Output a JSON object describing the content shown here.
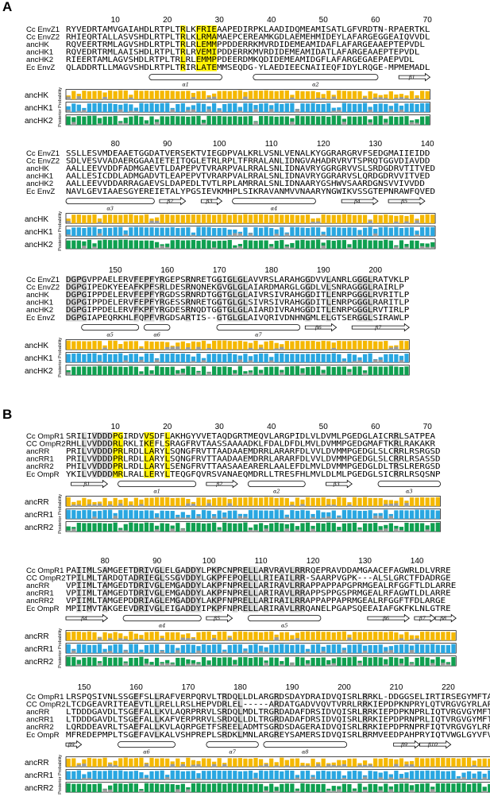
{
  "panels": [
    {
      "letter": "A",
      "blocks": [
        {
          "start": 1,
          "ticks": [
            10,
            20,
            30,
            40,
            50,
            60,
            70
          ],
          "seqs": [
            {
              "name": "Cc EnvZ1",
              "seq": "RYVEDRTAMVGAIAHDLRTPLTRLKFRIEAAPEDIRPKLAADIDQMEAMISATLGFVRDTN-RPAERTKL"
            },
            {
              "name": "Cc EnvZ2",
              "seq": "RHIEQRTALLASVSHDLRTPLTRLKLRMAMAEPCEREAMKGDLAEMEHMIDEYLAFARGEGGEAIQVVDL"
            },
            {
              "name": "ancHK",
              "seq": "RQVEERTRMLAGVSHDLRTPLTRLRLEMMPPDDERRKMVRDIDEMEAMIDAFLAFARGEAAEPTEPVDL"
            },
            {
              "name": "ancHK1",
              "seq": "RQVEDRTRMLAAISHDLRTPLTRLRVEMIPDDERRKMVRDIDEMEAMIDATLAFARGEAAEPTEPVDL"
            },
            {
              "name": "ancHK2",
              "seq": "RIEERTAMLAGVSHDLRTPLTRLRLEMMPPDEERDMKQDIDEMEAMIDGFLAFARGEGAEPAEPVDL"
            },
            {
              "name": "Ec EnvZ",
              "seq": "QLADDRTLLMAGVSHDLRTPLTRIRLATEMMSEQDG-YLAEDIEECNAIIEQFIDYLRQGE-MPMEMADL"
            }
          ],
          "ss": [
            {
              "label": "α1",
              "type": "helix",
              "from": 17,
              "to": 30
            },
            {
              "label": "α2",
              "type": "helix",
              "from": 37,
              "to": 60
            },
            {
              "label": "β1",
              "type": "strand",
              "from": 65,
              "to": 70
            }
          ],
          "pp_rows": [
            {
              "name": "ancHK",
              "color": "#F5B800"
            },
            {
              "name": "ancHK1",
              "color": "#29A7E1"
            },
            {
              "name": "ancHK2",
              "color": "#0FA050"
            }
          ]
        },
        {
          "start": 71,
          "ticks": [
            80,
            90,
            100,
            110,
            120,
            130,
            140
          ],
          "seqs": [
            {
              "name": "Cc EnvZ1",
              "seq": "SSLLESVMDEAAETGGDATVERSEKTVIEGDPVALKRLVSNLVENALKYGGRARGRVFSEDGMAIIEIDD"
            },
            {
              "name": "Cc EnvZ2",
              "seq": "SDLVESVVADAERGGAAIETEITQGLETRLRPLTFRRALANLIDNGVAHADRVRVTSPRQTGGVDIAVDD"
            },
            {
              "name": "ancHK",
              "seq": "AALLEEVVDDFADMGAEVTLDAPEPVTVRARPVALRRALSNLIDNAVRYGGRGRVVSLSRDGDRVTITVED"
            },
            {
              "name": "ancHK1",
              "seq": "AALLESICDDLADMGADVTLEAPEPVTVRARPVALRRALSNLIDNAVRYGGRARVSLQRDGDRVVITVED"
            },
            {
              "name": "ancHK2",
              "seq": "AALLEEVVDDARRAGAEVSLDAPEDLTVTLRPLAMRRALSNLIDNAARYGSHWVSAARDGNSVVIVVDD"
            },
            {
              "name": "Ec EnvZ",
              "seq": "NAVLGEVIAAESGYEREIETALYPGSIEVKMHPLSIKRAVANMVVNAARYNGWIKVSSGTEPNRAWFQVED"
            }
          ],
          "ss": [
            {
              "label": "α3",
              "type": "helix",
              "from": 71,
              "to": 87
            },
            {
              "label": "β2",
              "type": "strand",
              "from": 89,
              "to": 93
            },
            {
              "label": "β3",
              "type": "strand",
              "from": 97,
              "to": 100
            },
            {
              "label": "α4",
              "type": "helix",
              "from": 103,
              "to": 118
            },
            {
              "label": "β4",
              "type": "strand",
              "from": 124,
              "to": 130
            },
            {
              "label": "β5",
              "type": "strand",
              "from": 133,
              "to": 139
            }
          ],
          "pp_rows": [
            {
              "name": "ancHK",
              "color": "#F5B800"
            },
            {
              "name": "ancHK1",
              "color": "#29A7E1"
            },
            {
              "name": "ancHK2",
              "color": "#0FA050"
            }
          ]
        },
        {
          "start": 141,
          "ticks": [
            150,
            160,
            170,
            180,
            190,
            200
          ],
          "seqs": [
            {
              "name": "Cc EnvZ1",
              "seq": "DGPGVPPAELERVFEPFYRGEPSRNRETGGIGLGLAVVRSLARAHGGDVVLANRLGGGLRATVKLP"
            },
            {
              "name": "Cc EnvZ2",
              "seq": "DGPGIPEDKYEEAFKPFSRLDESRNQNEKGVGLGLAIARDMARGLGGDLVLSNRAGGGLRAIRLP"
            },
            {
              "name": "ancHK",
              "seq": "DGPGIPPDELERVFEPFYRGDSSRNRDTGGTGLGLAIVRSIVRAHGGDITLENRPGGGLRVRITLP"
            },
            {
              "name": "ancHK1",
              "seq": "DGPGIPPDELERVFEPFYRGESSRNRETGGTGLGLSIVRSIVRAHGGDITLENRPGGGLRARITLP"
            },
            {
              "name": "ancHK2",
              "seq": "DGPGIPPDELERVFKPFYRGDESRNQDTGGTGLGLAIARDIVRAHGGDITLENRPGGGLRVTIRLP"
            },
            {
              "name": "Ec EnvZ",
              "seq": "DGPGIAPEQRKHLFQPFVRGDSARTIS--GTGLGLAIVQRIVDNHNGMLELGTSERGGLSIRAWLP"
            }
          ],
          "ss": [
            {
              "label": "α5",
              "type": "helix",
              "from": 144,
              "to": 154
            },
            {
              "label": "α6",
              "type": "helix",
              "from": 156,
              "to": 160
            },
            {
              "label": "α7",
              "type": "helix",
              "from": 170,
              "to": 185
            },
            {
              "label": "β6",
              "type": "strand",
              "from": 187,
              "to": 192
            },
            {
              "label": "β7",
              "type": "strand",
              "from": 196,
              "to": 206
            }
          ],
          "pp_rows": [
            {
              "name": "ancHK",
              "color": "#F5B800"
            },
            {
              "name": "ancHK1",
              "color": "#29A7E1"
            },
            {
              "name": "ancHK2",
              "color": "#0FA050"
            }
          ]
        }
      ]
    },
    {
      "letter": "B",
      "blocks": [
        {
          "start": 1,
          "ticks": [
            10,
            20,
            30,
            40,
            50,
            60,
            70
          ],
          "seqs": [
            {
              "name": "Cc OmpR1",
              "seq": "SRILIVDDDPGIRDVVSDFLAKHGYVVETAQDGRTMEQVLARGPIDLVLDVMLPGEDGLAICRRLSATPEA"
            },
            {
              "name": "CC OmpR2",
              "seq": "RHLLVVDDDRLRKLIKEFLSRAGFRVTAASSAAAADKLFDALDFDLMVLDVMMPGEDGMAFTKRLRAKAKR"
            },
            {
              "name": "ancRR",
              "seq": "PRILVVDDDPRLRDLLARYLSQNGFRVTTAADAAEMDRRLARARFDLVVLDVMMPGEDGLSLCRRLRSRGSD"
            },
            {
              "name": "ancRR1",
              "seq": "PRILVVDDDPRLRDLLARYLSQNGFRVTTAADAAEMDRRLARARFDLVVLDVMMPGEDGLSLCRRLRSASSD"
            },
            {
              "name": "ancRR2",
              "seq": "PHILVVDDDPRLRDLLARYLSENGFRVTTAASAAEARERLAALEFDLMVLDVMMPGEDGLDLTRSLRERGSD"
            },
            {
              "name": "Ec OmpR",
              "seq": "YKILVVDDDMRLRALLERYLTEQGFQVRSVANAEQMDRLLTRESFHLMVLDLMLPGEDGLSICRRLRSQSNP"
            }
          ],
          "ss": [
            {
              "label": "β1",
              "type": "strand",
              "from": 2,
              "to": 8
            },
            {
              "label": "α1",
              "type": "helix",
              "from": 11,
              "to": 25
            },
            {
              "label": "β2",
              "type": "strand",
              "from": 28,
              "to": 33
            },
            {
              "label": "α2",
              "type": "helix",
              "from": 36,
              "to": 46
            },
            {
              "label": "β3",
              "type": "strand",
              "from": 51,
              "to": 55
            },
            {
              "label": "α3",
              "type": "helix",
              "from": 61,
              "to": 72
            }
          ],
          "pp_rows": [
            {
              "name": "ancRR",
              "color": "#F5B800"
            },
            {
              "name": "ancRR1",
              "color": "#29A7E1"
            },
            {
              "name": "ancRR2",
              "color": "#0FA050"
            }
          ]
        },
        {
          "start": 73,
          "ticks": [
            80,
            90,
            100,
            110,
            120,
            130,
            140
          ],
          "seqs": [
            {
              "name": "Cc OmpR1",
              "seq": "PAIIMLSAMGEETDRIVGLELGADDYLPKPCNPRELLARVRAVLRRRQEPRAVDDAMGAACEFAGWRLDLVRRE"
            },
            {
              "name": "CC OmpR2",
              "seq": "TPILMLTARDQTADRIEGLSSGVDDYLGKPFEPQELLLRIEAILRR-SAARPVGPK---ALSLGRCTFDADRGE"
            },
            {
              "name": "ancRR",
              "seq": "VPIIMLTAMGEDTDRIVGLEMGADDYLAKPFNPRELLARIRAVLRRAPPAPPAPGPRMGEALRFGGFTLDLARRE"
            },
            {
              "name": "ancRR1",
              "seq": "VPIIMLTAMGEDTDRIVGLEMGADDYLAKPFNPRELLARIRAVLRRAPPSPPGSPRMGEALRFAGWTLDLARRE"
            },
            {
              "name": "ancRR2",
              "seq": "VPIIMLTAMGEPDDRIAGLEMGADDYLAKPFNPRELLARIRAILRRAPPAPPAPRMGEALRFGGFTFDLARGE"
            },
            {
              "name": "Ec OmpR",
              "seq": "MPIIMVTAKGEEVDRIVGLEIGADDYIPKPFNPRELLARIRAVLRRQANELPGAPSQEEAIAFGKFKLNLGTRE"
            }
          ],
          "ss": [
            {
              "label": "β4",
              "type": "strand",
              "from": 73,
              "to": 80
            },
            {
              "label": "α4",
              "type": "helix",
              "from": 84,
              "to": 98
            },
            {
              "label": "β5",
              "type": "strand",
              "from": 100,
              "to": 104
            },
            {
              "label": "α5",
              "type": "helix",
              "from": 108,
              "to": 121
            },
            {
              "label": "β6",
              "type": "strand",
              "from": 131,
              "to": 138
            },
            {
              "label": "β7",
              "type": "strand",
              "from": 140,
              "to": 143
            },
            {
              "label": "β8",
              "type": "strand",
              "from": 144,
              "to": 147
            }
          ],
          "pp_rows": [
            {
              "name": "ancRR",
              "color": "#F5B800"
            },
            {
              "name": "ancRR1",
              "color": "#29A7E1"
            },
            {
              "name": "ancRR2",
              "color": "#0FA050"
            }
          ]
        },
        {
          "start": 147,
          "ticks": [
            150,
            160,
            170,
            180,
            190,
            200,
            210,
            220
          ],
          "seqs": [
            {
              "name": "Cc OmpR1",
              "seq": "LRSPQSIVNLSSGEFSLLRAFVERPQRVLTRDQLLDLARGRDSDAYDRAIDVQISRLRRKL-DDGGSELIRTIRSEGYMFTAKVVR"
            },
            {
              "name": "CC OmpR2",
              "seq": "LTCDGEAVRITEAEVTLLRELLRSLHEPVDRLEL-----ARDATGADVVQVTVRRLRRKIEPDPKNPRYLQTVRGVGYRLAPD---"
            },
            {
              "name": "ancRR",
              "seq": "LTDDDGAVDLTSGEFALLKVLAQRPRRVLSRDQLMDLTRGRDADAFDRSIDVQISRLRRKIEPDPKNPRLIQTVRGVGYMFTPDAER"
            },
            {
              "name": "ancRR1",
              "seq": "LTDDDGAVDLTSGEFALLKAFVERPRRVLSRDQLLDLTRGRDADAFDRSIDVQISRLRRKIEPDPRNPRLIQTVRGVGYMFTPDVER"
            },
            {
              "name": "ancRR2",
              "seq": "LQRDDEAVRLTSAEFALLKVLAQRPGETFSREELADMTSGRDSDAGERAIDVQISRLRRKIEPDPRNPRFIQTVRGVGYLRPDPER"
            },
            {
              "name": "Ec OmpR",
              "seq": "MFREDEPMPLTSGEFAVLKALVSHPREPLSRDKLMNLARGREYSAMERSIDVQISRLRRMVEEDPAHPRYIQTVWGLGYVFVPDGSK"
            }
          ],
          "ss": [
            {
              "label": "β9",
              "type": "strand",
              "from": 147,
              "to": 149
            },
            {
              "label": "α6",
              "type": "helix",
              "from": 157,
              "to": 167
            },
            {
              "label": "α7",
              "type": "helix",
              "from": 174,
              "to": 183
            },
            {
              "label": "α8",
              "type": "helix",
              "from": 185,
              "to": 200
            },
            {
              "label": "β9",
              "type": "strand",
              "from": 210,
              "to": 214
            },
            {
              "label": "β10",
              "type": "strand",
              "from": 215,
              "to": 220
            }
          ],
          "pp_rows": [
            {
              "name": "ancRR",
              "color": "#F5B800"
            },
            {
              "name": "ancRR1",
              "color": "#29A7E1"
            },
            {
              "name": "ancRR2",
              "color": "#0FA050"
            }
          ]
        }
      ]
    }
  ],
  "pp_axis_label": "Posterior Probability",
  "colors": {
    "conserved_bg": "#D6D6D6",
    "highlight_bg": "#FFF200",
    "low_pp_bar": "#9A9A9A"
  }
}
